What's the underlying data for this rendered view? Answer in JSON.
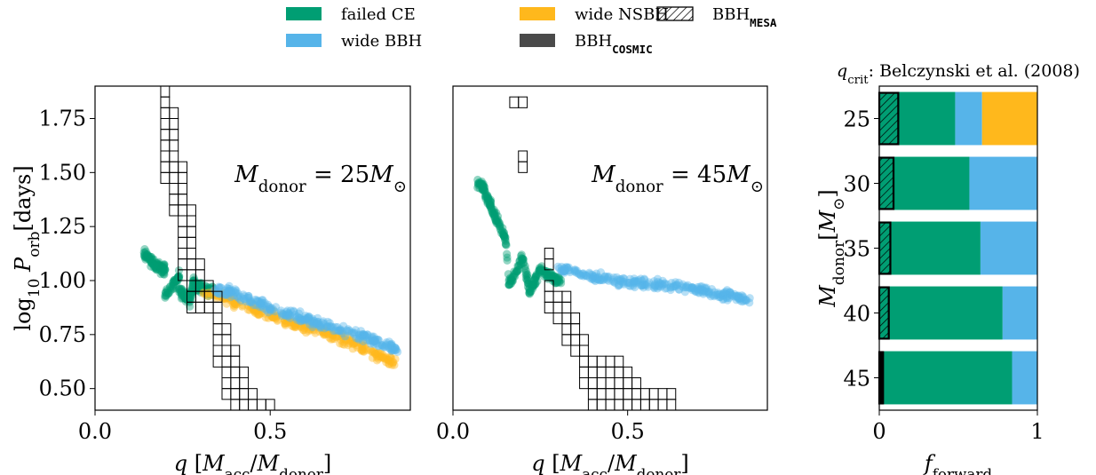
{
  "legend": {
    "items": [
      {
        "label": "failed CE",
        "color": "#009E73",
        "style": "solid"
      },
      {
        "label": "wide BBH",
        "color": "#56B4E9",
        "style": "solid"
      },
      {
        "label": "wide NSBH",
        "color": "#FFB81C",
        "style": "solid"
      },
      {
        "label": "BBH",
        "sub": "COSMIC",
        "color": "#4a4a4a",
        "style": "solid"
      },
      {
        "label": "BBH",
        "sub": "MESA",
        "color": "#000000",
        "style": "hatch"
      }
    ]
  },
  "colors": {
    "failed_ce": "#009E73",
    "wide_bbh": "#56B4E9",
    "wide_nsbh": "#FFB81C",
    "cosmic": "#000000"
  },
  "chart_data": [
    {
      "type": "scatter",
      "panel": "left",
      "annotation": "M_donor = 25 M_⊙",
      "xlabel": "q [M_acc/M_donor]",
      "ylabel": "log10 P_orb[days]",
      "xlim": [
        0.0,
        0.9
      ],
      "ylim": [
        0.4,
        1.9
      ],
      "xticks": [
        0.0,
        0.5
      ],
      "yticks": [
        0.5,
        0.75,
        1.0,
        1.25,
        1.5,
        1.75
      ],
      "series": [
        {
          "name": "failed CE",
          "x_range": [
            0.14,
            0.34
          ],
          "points": [
            [
              0.14,
              1.13
            ],
            [
              0.17,
              1.07
            ],
            [
              0.2,
              1.05
            ],
            [
              0.24,
              1.02
            ],
            [
              0.28,
              0.99
            ],
            [
              0.3,
              0.97
            ],
            [
              0.33,
              0.95
            ],
            [
              0.2,
              0.93
            ],
            [
              0.24,
              0.96
            ],
            [
              0.27,
              0.9
            ]
          ]
        },
        {
          "name": "wide NSBH",
          "x_range": [
            0.3,
            0.86
          ],
          "points": [
            [
              0.35,
              0.94
            ],
            [
              0.42,
              0.88
            ],
            [
              0.5,
              0.84
            ],
            [
              0.58,
              0.8
            ],
            [
              0.66,
              0.76
            ],
            [
              0.74,
              0.71
            ],
            [
              0.8,
              0.66
            ],
            [
              0.85,
              0.62
            ]
          ]
        },
        {
          "name": "wide BBH",
          "x_range": [
            0.34,
            0.87
          ],
          "points": [
            [
              0.38,
              0.95
            ],
            [
              0.5,
              0.87
            ],
            [
              0.6,
              0.82
            ],
            [
              0.7,
              0.77
            ],
            [
              0.8,
              0.72
            ],
            [
              0.86,
              0.68
            ]
          ]
        }
      ],
      "cosmic_columns": [
        {
          "q": 0.2,
          "p_lo": 1.45,
          "p_hi": 1.9
        },
        {
          "q": 0.225,
          "p_lo": 1.3,
          "p_hi": 1.8
        },
        {
          "q": 0.25,
          "p_lo": 1.0,
          "p_hi": 1.55
        },
        {
          "q": 0.275,
          "p_lo": 0.85,
          "p_hi": 1.35
        },
        {
          "q": 0.3,
          "p_lo": 0.85,
          "p_hi": 1.1
        },
        {
          "q": 0.325,
          "p_lo": 0.85,
          "p_hi": 1.0
        },
        {
          "q": 0.35,
          "p_lo": 0.6,
          "p_hi": 0.95
        },
        {
          "q": 0.375,
          "p_lo": 0.45,
          "p_hi": 0.8
        },
        {
          "q": 0.4,
          "p_lo": 0.4,
          "p_hi": 0.7
        },
        {
          "q": 0.425,
          "p_lo": 0.4,
          "p_hi": 0.6
        },
        {
          "q": 0.45,
          "p_lo": 0.4,
          "p_hi": 0.5
        },
        {
          "q": 0.475,
          "p_lo": 0.4,
          "p_hi": 0.45
        },
        {
          "q": 0.5,
          "p_lo": 0.4,
          "p_hi": 0.45
        }
      ]
    },
    {
      "type": "scatter",
      "panel": "middle",
      "annotation": "M_donor = 45 M_⊙",
      "xlabel": "q [M_acc/M_donor]",
      "xlim": [
        0.0,
        0.9
      ],
      "ylim": [
        0.4,
        1.9
      ],
      "xticks": [
        0.0,
        0.5
      ],
      "series": [
        {
          "name": "failed CE",
          "x_range": [
            0.07,
            0.31
          ],
          "points": [
            [
              0.08,
              1.45
            ],
            [
              0.1,
              1.38
            ],
            [
              0.12,
              1.3
            ],
            [
              0.15,
              1.2
            ],
            [
              0.2,
              1.1
            ],
            [
              0.25,
              1.05
            ],
            [
              0.3,
              1.0
            ],
            [
              0.16,
              0.98
            ],
            [
              0.22,
              0.95
            ]
          ]
        },
        {
          "name": "wide BBH",
          "x_range": [
            0.3,
            0.85
          ],
          "points": [
            [
              0.32,
              1.05
            ],
            [
              0.4,
              1.02
            ],
            [
              0.5,
              0.99
            ],
            [
              0.6,
              0.98
            ],
            [
              0.7,
              0.96
            ],
            [
              0.8,
              0.93
            ],
            [
              0.84,
              0.91
            ]
          ]
        }
      ],
      "cosmic_columns": [
        {
          "q": 0.175,
          "p_lo": 1.8,
          "p_hi": 1.85
        },
        {
          "q": 0.2,
          "p_lo": 1.8,
          "p_hi": 1.85
        },
        {
          "q": 0.2,
          "p_lo": 1.5,
          "p_hi": 1.6
        },
        {
          "q": 0.275,
          "p_lo": 1.05,
          "p_hi": 1.15
        },
        {
          "q": 0.275,
          "p_lo": 0.95,
          "p_hi": 1.0
        },
        {
          "q": 0.275,
          "p_lo": 0.85,
          "p_hi": 0.95
        },
        {
          "q": 0.3,
          "p_lo": 0.8,
          "p_hi": 0.95
        },
        {
          "q": 0.325,
          "p_lo": 0.7,
          "p_hi": 0.95
        },
        {
          "q": 0.35,
          "p_lo": 0.65,
          "p_hi": 0.85
        },
        {
          "q": 0.375,
          "p_lo": 0.5,
          "p_hi": 0.75
        },
        {
          "q": 0.4,
          "p_lo": 0.4,
          "p_hi": 0.65
        },
        {
          "q": 0.425,
          "p_lo": 0.4,
          "p_hi": 0.65
        },
        {
          "q": 0.45,
          "p_lo": 0.4,
          "p_hi": 0.65
        },
        {
          "q": 0.475,
          "p_lo": 0.4,
          "p_hi": 0.65
        },
        {
          "q": 0.5,
          "p_lo": 0.4,
          "p_hi": 0.6
        },
        {
          "q": 0.525,
          "p_lo": 0.4,
          "p_hi": 0.55
        },
        {
          "q": 0.55,
          "p_lo": 0.4,
          "p_hi": 0.5
        },
        {
          "q": 0.575,
          "p_lo": 0.4,
          "p_hi": 0.5
        },
        {
          "q": 0.6,
          "p_lo": 0.4,
          "p_hi": 0.5
        },
        {
          "q": 0.625,
          "p_lo": 0.4,
          "p_hi": 0.5
        }
      ]
    },
    {
      "type": "bar",
      "panel": "right",
      "orientation": "horizontal-stacked",
      "title": "q_crit: Belczynski et al. (2008)",
      "xlabel": "f_forward",
      "ylabel": "M_donor[M_⊙]",
      "xlim": [
        0,
        1
      ],
      "xticks": [
        0,
        1
      ],
      "categories": [
        "25",
        "30",
        "35",
        "40",
        "45"
      ],
      "series": [
        {
          "name": "failed CE",
          "values": [
            0.48,
            0.57,
            0.64,
            0.78,
            0.84
          ]
        },
        {
          "name": "wide BBH",
          "values": [
            0.17,
            0.43,
            0.36,
            0.22,
            0.16
          ]
        },
        {
          "name": "wide NSBH",
          "values": [
            0.35,
            0.0,
            0.0,
            0.0,
            0.0
          ]
        }
      ],
      "mesa_fraction": [
        0.12,
        0.09,
        0.07,
        0.06,
        0.02
      ],
      "cosmic_fraction": [
        0.0,
        0.0,
        0.0,
        0.0,
        0.03
      ]
    }
  ]
}
